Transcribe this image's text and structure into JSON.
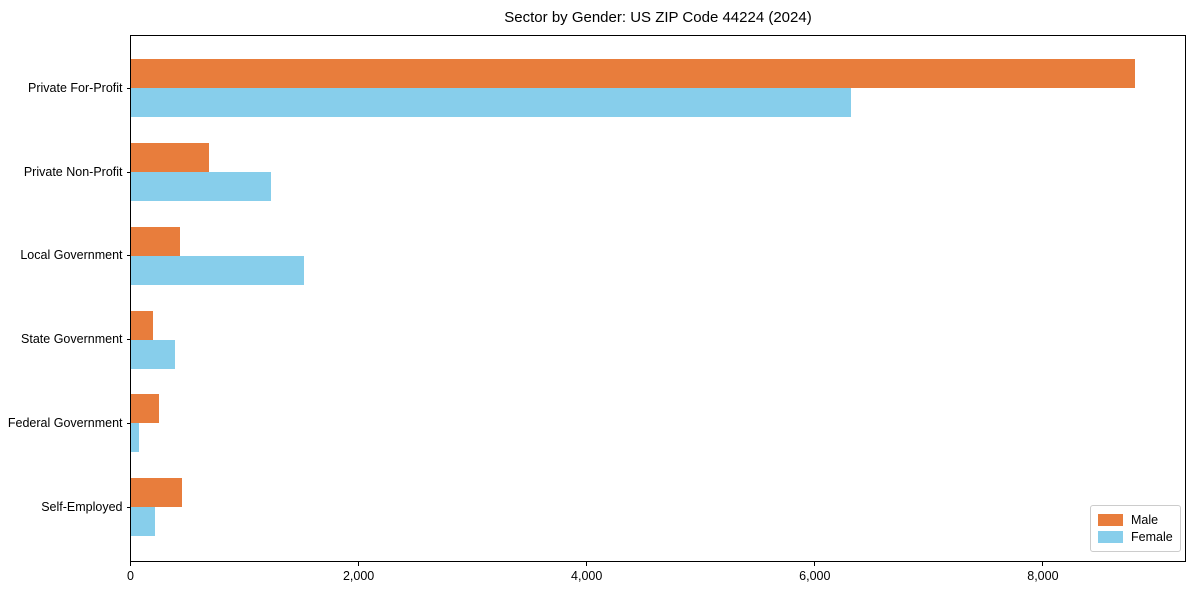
{
  "figure": {
    "title": "Sector by Gender: US ZIP Code 44224 (2024)"
  },
  "chart_data": {
    "type": "bar",
    "orientation": "horizontal",
    "title": "Sector by Gender: US ZIP Code 44224 (2024)",
    "categories": [
      "Private For-Profit",
      "Private Non-Profit",
      "Local Government",
      "State Government",
      "Federal Government",
      "Self-Employed"
    ],
    "series": [
      {
        "name": "Male",
        "color": "#E87D3C",
        "values": [
          8810,
          690,
          430,
          200,
          250,
          450
        ]
      },
      {
        "name": "Female",
        "color": "#87CEEB",
        "values": [
          6320,
          1230,
          1520,
          390,
          70,
          215
        ]
      }
    ],
    "xlabel": "",
    "ylabel": "",
    "xlim": [
      0,
      9250
    ],
    "xticks": [
      {
        "value": 0,
        "label": "0"
      },
      {
        "value": 2000,
        "label": "2,000"
      },
      {
        "value": 4000,
        "label": "4,000"
      },
      {
        "value": 6000,
        "label": "6,000"
      },
      {
        "value": 8000,
        "label": "8,000"
      }
    ],
    "grid": false,
    "legend": {
      "position": "lower right",
      "entries": [
        "Male",
        "Female"
      ]
    }
  },
  "colors": {
    "male": "#E87D3C",
    "female": "#87CEEB",
    "spine": "#000000",
    "legend_border": "#cccccc",
    "background": "#ffffff"
  }
}
